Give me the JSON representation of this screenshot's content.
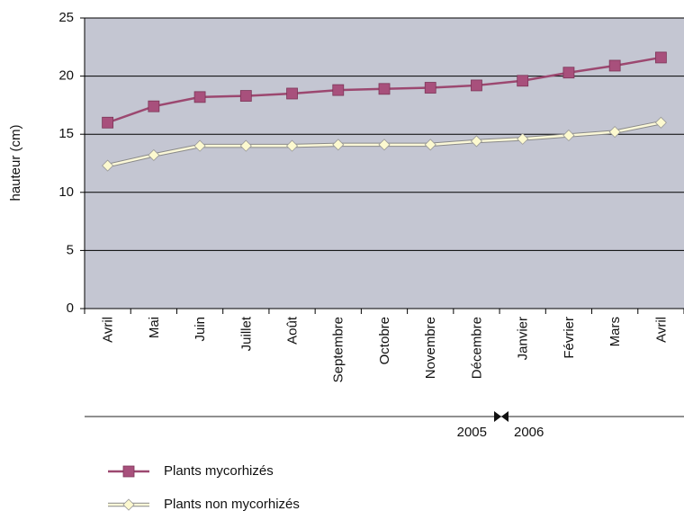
{
  "chart_data": {
    "type": "line",
    "y_label": "hauteur (cm)",
    "categories": [
      "Avril",
      "Mai",
      "Juin",
      "Juillet",
      "Août",
      "Septembre",
      "Octobre",
      "Novembre",
      "Décembre",
      "Janvier",
      "Février",
      "Mars",
      "Avril"
    ],
    "series": [
      {
        "name": "Plants mycorhizés",
        "color": "#9c4870",
        "marker": "square",
        "marker_color": "#a8507c",
        "values": [
          16.0,
          17.4,
          18.2,
          18.3,
          18.5,
          18.8,
          18.9,
          19.0,
          19.2,
          19.6,
          20.3,
          20.9,
          21.6
        ]
      },
      {
        "name": "Plants non mycorhizés",
        "color": "#fbf8d8",
        "marker": "diamond",
        "marker_color": "#fcf9cf",
        "values": [
          12.3,
          13.2,
          14.0,
          14.0,
          14.0,
          14.1,
          14.1,
          14.1,
          14.4,
          14.6,
          14.9,
          15.2,
          16.0
        ]
      }
    ],
    "ylim": [
      0,
      25
    ],
    "yticks": [
      0,
      5,
      10,
      15,
      20,
      25
    ],
    "grid": true,
    "annotations": [
      "2005",
      "2006"
    ]
  }
}
